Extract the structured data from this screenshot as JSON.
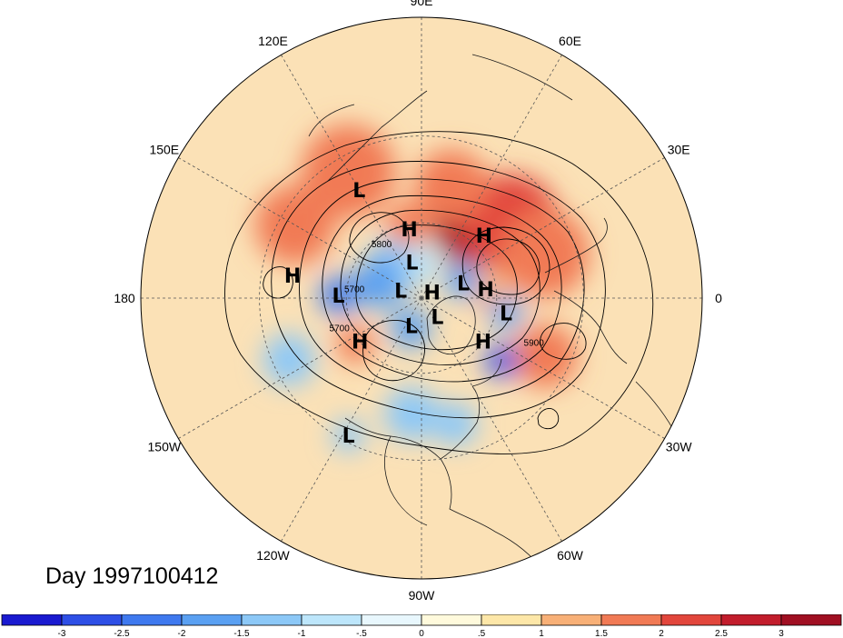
{
  "title": "Day 1997100412",
  "longitude_labels": [
    {
      "text": "90E",
      "angle": 90
    },
    {
      "text": "60E",
      "angle": 60
    },
    {
      "text": "30E",
      "angle": 30
    },
    {
      "text": "0",
      "angle": 0
    },
    {
      "text": "30W",
      "angle": -30
    },
    {
      "text": "60W",
      "angle": -60
    },
    {
      "text": "90W",
      "angle": -90
    },
    {
      "text": "120W",
      "angle": -120
    },
    {
      "text": "150W",
      "angle": -150
    },
    {
      "text": "180",
      "angle": 180
    },
    {
      "text": "150E",
      "angle": 150
    },
    {
      "text": "120E",
      "angle": 120
    }
  ],
  "pressure_centers": [
    {
      "label": "L",
      "lon": 120,
      "lat": 42
    },
    {
      "label": "H",
      "lon": 100,
      "lat": 62
    },
    {
      "label": "H",
      "lon": 45,
      "lat": 55
    },
    {
      "label": "L",
      "lon": 105,
      "lat": 75
    },
    {
      "label": "H",
      "lon": 170,
      "lat": 40
    },
    {
      "label": "L",
      "lon": 178,
      "lat": 57
    },
    {
      "label": "L",
      "lon": 160,
      "lat": 81
    },
    {
      "label": "H",
      "lon": 30,
      "lat": 85
    },
    {
      "label": "L",
      "lon": 20,
      "lat": 72
    },
    {
      "label": "H",
      "lon": 8,
      "lat": 64
    },
    {
      "label": "L",
      "lon": -10,
      "lat": 56
    },
    {
      "label": "L",
      "lon": -110,
      "lat": 78
    },
    {
      "label": "L",
      "lon": -50,
      "lat": 80
    },
    {
      "label": "H",
      "lon": -35,
      "lat": 60
    },
    {
      "label": "H",
      "lon": -145,
      "lat": 60
    },
    {
      "label": "L",
      "lon": -118,
      "lat": 32
    }
  ],
  "contour_labels": [
    {
      "text": "5800",
      "lon": 128,
      "lat": 64
    },
    {
      "text": "5700",
      "lon": 175,
      "lat": 63
    },
    {
      "text": "5700",
      "lon": -158,
      "lat": 55
    },
    {
      "text": "5900",
      "lon": -23,
      "lat": 43
    }
  ],
  "colorbar": {
    "tick_labels": [
      "-3",
      "-2.5",
      "-2",
      "-1.5",
      "-1",
      "-.5",
      "0",
      ".5",
      "1",
      "1.5",
      "2",
      "2.5",
      "3"
    ],
    "colors": [
      "#1a1ad0",
      "#2e4fe6",
      "#3f79ef",
      "#5aa0f2",
      "#8cc8f7",
      "#bde6fb",
      "#e8f7fd",
      "#fffadc",
      "#fde7a8",
      "#f8b077",
      "#f17a55",
      "#e2463c",
      "#c21d2c",
      "#a00f22"
    ]
  },
  "anomaly_regions": [
    {
      "lon": 55,
      "lat": 55,
      "r": 14,
      "v": 3
    },
    {
      "lon": 40,
      "lat": 45,
      "r": 16,
      "v": 2.2
    },
    {
      "lon": 20,
      "lat": 40,
      "r": 14,
      "v": 1.7
    },
    {
      "lon": 75,
      "lat": 45,
      "r": 12,
      "v": 1.9
    },
    {
      "lon": 120,
      "lat": 35,
      "r": 14,
      "v": 1.6
    },
    {
      "lon": 150,
      "lat": 35,
      "r": 12,
      "v": 1.6
    },
    {
      "lon": 100,
      "lat": 60,
      "r": 8,
      "v": 1.6
    },
    {
      "lon": -25,
      "lat": 38,
      "r": 10,
      "v": 1.5
    },
    {
      "lon": -145,
      "lat": 58,
      "r": 7,
      "v": 1.6
    },
    {
      "lon": 5,
      "lat": 62,
      "r": 7,
      "v": 1.3
    },
    {
      "lon": 130,
      "lat": 70,
      "r": 8,
      "v": -1.2
    },
    {
      "lon": 160,
      "lat": 72,
      "r": 10,
      "v": -1.8
    },
    {
      "lon": 178,
      "lat": 57,
      "r": 7,
      "v": -2.4
    },
    {
      "lon": 22,
      "lat": 72,
      "r": 7,
      "v": -1.6
    },
    {
      "lon": -10,
      "lat": 56,
      "r": 6,
      "v": -1.7
    },
    {
      "lon": -38,
      "lat": 50,
      "r": 4,
      "v": -3
    },
    {
      "lon": -110,
      "lat": 77,
      "r": 8,
      "v": -1.8
    },
    {
      "lon": -95,
      "lat": 45,
      "r": 9,
      "v": -1.2
    },
    {
      "lon": -75,
      "lat": 40,
      "r": 7,
      "v": -1.3
    },
    {
      "lon": -155,
      "lat": 35,
      "r": 8,
      "v": -1.3
    },
    {
      "lon": -118,
      "lat": 32,
      "r": 5,
      "v": -1.1
    },
    {
      "lon": 105,
      "lat": 78,
      "r": 7,
      "v": -1.3
    },
    {
      "lon": 85,
      "lat": 75,
      "r": 6,
      "v": -0.8
    }
  ]
}
